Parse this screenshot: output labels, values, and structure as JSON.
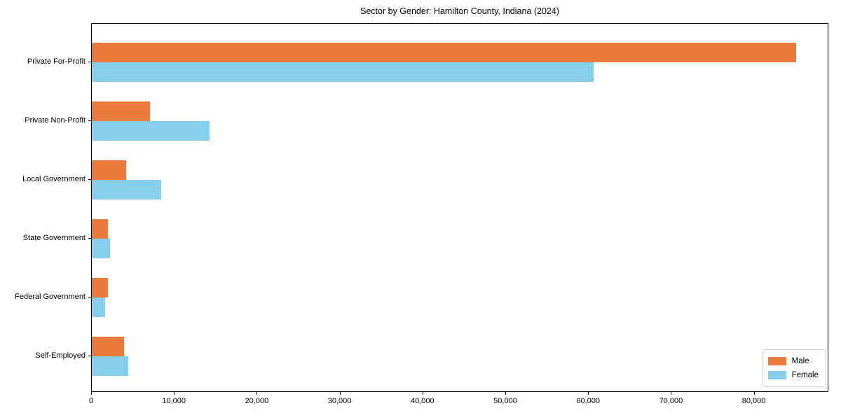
{
  "title": "Sector by Gender: Hamilton County, Indiana (2024)",
  "colors": {
    "male": "#EC7A3C",
    "female": "#87CEEB",
    "axis": "#000000",
    "legend_border": "#cccccc",
    "background": "#ffffff"
  },
  "legend": {
    "position": "lower right",
    "items": [
      {
        "label": "Male",
        "color": "#EC7A3C"
      },
      {
        "label": "Female",
        "color": "#87CEEB"
      }
    ]
  },
  "chart_data": {
    "type": "bar",
    "orientation": "horizontal",
    "title": "Sector by Gender: Hamilton County, Indiana (2024)",
    "categories": [
      "Private For-Profit",
      "Private Non-Profit",
      "Local Government",
      "State Government",
      "Federal Government",
      "Self-Employed"
    ],
    "series": [
      {
        "name": "Male",
        "color": "#EC7A3C",
        "values": [
          85000,
          7000,
          4100,
          1900,
          1900,
          3900
        ]
      },
      {
        "name": "Female",
        "color": "#87CEEB",
        "values": [
          60600,
          14200,
          8400,
          2200,
          1600,
          4400
        ]
      }
    ],
    "xlabel": "",
    "ylabel": "",
    "xlim": [
      0,
      89000
    ],
    "xticks": [
      0,
      10000,
      20000,
      30000,
      40000,
      50000,
      60000,
      70000,
      80000
    ],
    "xtick_labels": [
      "0",
      "10,000",
      "20,000",
      "30,000",
      "40,000",
      "50,000",
      "60,000",
      "70,000",
      "80,000"
    ],
    "grid": false,
    "legend_position": "lower right"
  }
}
